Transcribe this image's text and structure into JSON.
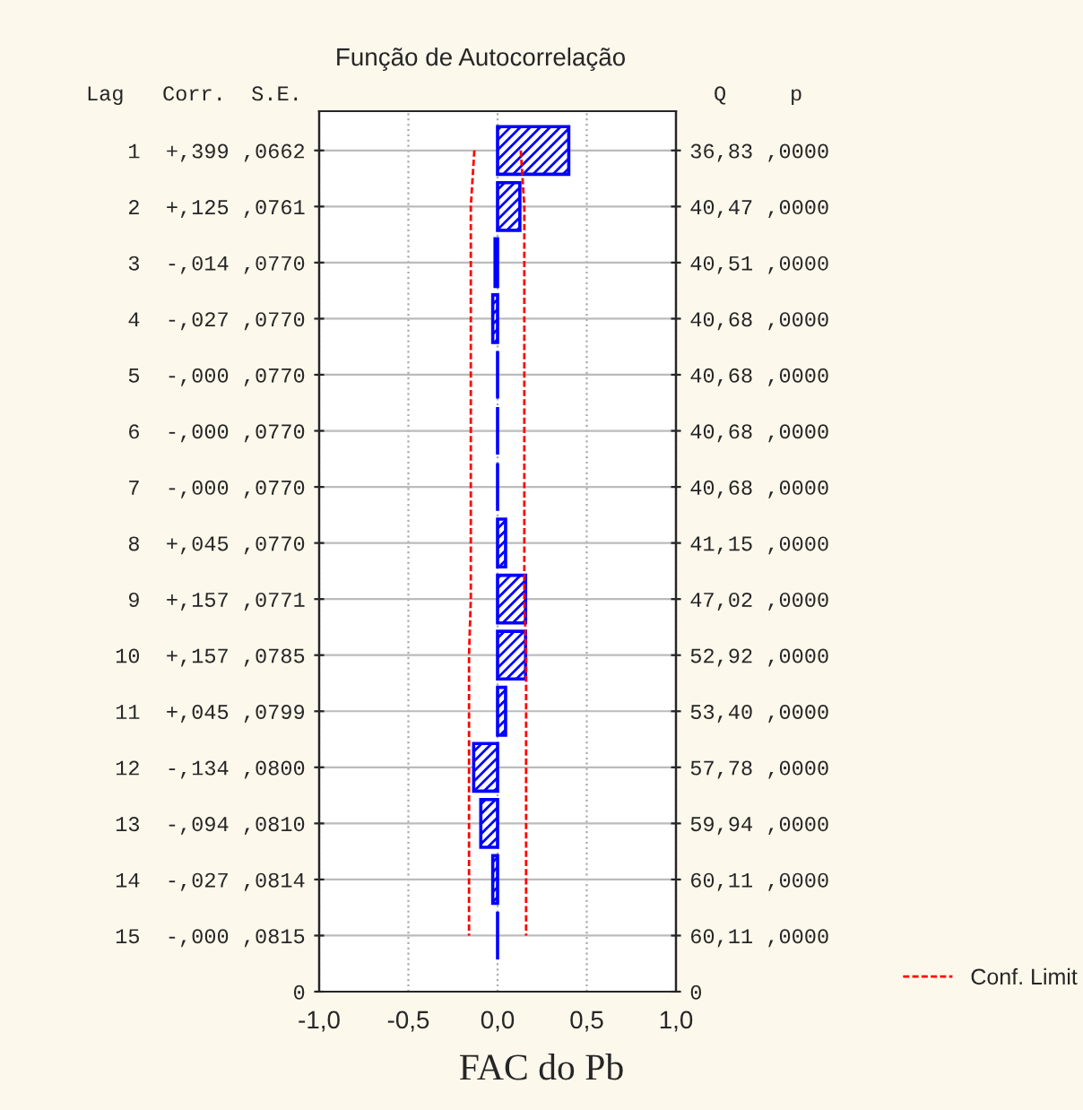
{
  "chart_data": {
    "type": "bar",
    "orientation": "horizontal",
    "title": "Função de Autocorrelação",
    "ylabel": "Lag   Corr.  S.E.",
    "y2label": "Q     p",
    "categories": [
      " 1  +,399 ,0662",
      " 2  +,125 ,0761",
      " 3  -,014 ,0770",
      " 4  -,027 ,0770",
      " 5  -,000 ,0770",
      " 6  -,000 ,0770",
      " 7  -,000 ,0770",
      " 8  +,045 ,0770",
      " 9  +,157 ,0771",
      "10  +,157 ,0785",
      "11  +,045 ,0799",
      "12  -,134 ,0800",
      "13  -,094 ,0810",
      "14  -,027 ,0814",
      "15  -,000 ,0815",
      "0"
    ],
    "y2_categories": [
      "36,83 ,0000",
      "40,47 ,0000",
      "40,51 ,0000",
      "40,68 ,0000",
      "40,68 ,0000",
      "40,68 ,0000",
      "40,68 ,0000",
      "41,15 ,0000",
      "47,02 ,0000",
      "52,92 ,0000",
      "53,40 ,0000",
      "57,78 ,0000",
      "59,94 ,0000",
      "60,11 ,0000",
      "60,11 ,0000",
      "0"
    ],
    "series": [
      {
        "type": "bar",
        "color": "#0000ff",
        "values": [
          0.399,
          0.125,
          -0.014,
          -0.027,
          0.0,
          0.0,
          0.0,
          0.045,
          0.157,
          0.157,
          0.045,
          -0.134,
          -0.094,
          -0.027,
          0.0,
          null
        ]
      },
      {
        "type": "line",
        "name": "Conf. Limit",
        "color": "#ff0000",
        "line_style": "dashed",
        "values": [
          0.13,
          0.15,
          0.15,
          0.15,
          0.15,
          0.15,
          0.15,
          0.15,
          0.15,
          0.16,
          0.16,
          0.16,
          0.16,
          0.16,
          0.16,
          null
        ]
      },
      {
        "type": "line",
        "color": "#ff0000",
        "line_style": "dashed",
        "values": [
          -0.13,
          -0.15,
          -0.15,
          -0.15,
          -0.15,
          -0.15,
          -0.15,
          -0.15,
          -0.15,
          -0.16,
          -0.16,
          -0.16,
          -0.16,
          -0.16,
          -0.16,
          null
        ]
      }
    ],
    "xlim": [
      -1,
      1
    ],
    "xticks": [
      {
        "value": -1,
        "label": "-1,0"
      },
      {
        "value": -0.5,
        "label": "-0,5"
      },
      {
        "value": 0,
        "label": "0,0"
      },
      {
        "value": 0.5,
        "label": "0,5"
      },
      {
        "value": 1,
        "label": "1,0"
      }
    ],
    "grid": true,
    "legend": "bottom right",
    "annotations": [
      "FAC do Pb"
    ]
  }
}
